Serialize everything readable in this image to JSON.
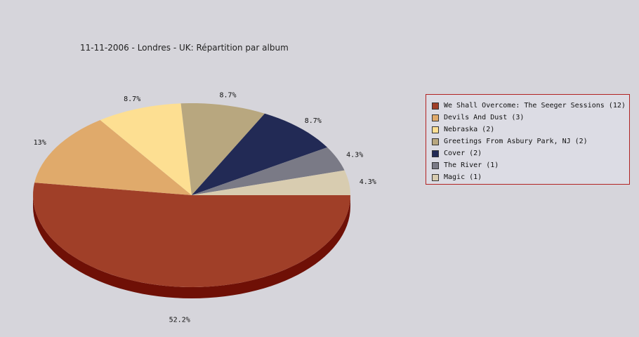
{
  "chart_data": {
    "type": "pie",
    "title": "11-11-2006 - Londres - UK:  Répartition par album",
    "slices": [
      {
        "label": "We Shall Overcome: The Seeger Sessions (12)",
        "value": 12,
        "percent_label": "52.2%",
        "color": "#a03f28",
        "side_color": "#6f1006"
      },
      {
        "label": "Devils And Dust (3)",
        "value": 3,
        "percent_label": "13%",
        "color": "#e0aa6b",
        "side_color": "#a2713f"
      },
      {
        "label": "Nebraska (2)",
        "value": 2,
        "percent_label": "8.7%",
        "color": "#fddf92",
        "side_color": "#bb9f52"
      },
      {
        "label": "Greetings From Asbury Park, NJ (2)",
        "value": 2,
        "percent_label": "8.7%",
        "color": "#b8a77f",
        "side_color": "#7f7050"
      },
      {
        "label": "Cover (2)",
        "value": 2,
        "percent_label": "8.7%",
        "color": "#222a55",
        "side_color": "#101530"
      },
      {
        "label": "The River (1)",
        "value": 1,
        "percent_label": "4.3%",
        "color": "#7a7a86",
        "side_color": "#4f4f58"
      },
      {
        "label": "Magic (1)",
        "value": 1,
        "percent_label": "4.3%",
        "color": "#d8ccb0",
        "side_color": "#a89c80"
      }
    ],
    "legend_position": "right"
  }
}
